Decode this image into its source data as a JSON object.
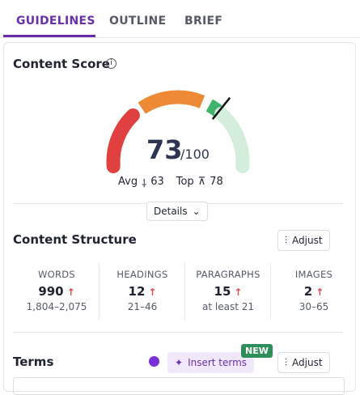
{
  "tabs": [
    "GUIDELINES",
    "OUTLINE",
    "BRIEF"
  ],
  "content_score": {
    "title": "Content Score",
    "score": 73,
    "max": "/100",
    "avg_label": "Avg",
    "avg": 63,
    "top_label": "Top",
    "top": 78,
    "details": "Details"
  },
  "content_structure": {
    "title": "Content Structure",
    "adjust": "Adjust",
    "metrics": [
      {
        "label": "WORDS",
        "value": 990,
        "range": "1,804–2,075"
      },
      {
        "label": "HEADINGS",
        "value": 12,
        "range": "21–46"
      },
      {
        "label": "PARAGRAPHS",
        "value": 15,
        "range": "at least 21"
      },
      {
        "label": "IMAGES",
        "value": 2,
        "range": "30–65"
      }
    ]
  },
  "terms": {
    "title": "Terms",
    "insert": "Insert terms",
    "badge": "NEW",
    "adjust": "Adjust"
  }
}
